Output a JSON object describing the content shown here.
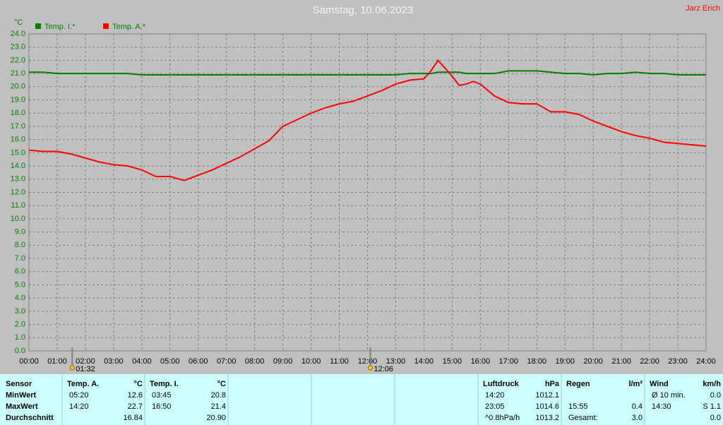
{
  "chart_data": {
    "type": "line",
    "title": "Samstag, 10.06.2023",
    "author": "Jarz Erich",
    "y_label": "°C",
    "x": [
      0,
      0.5,
      1,
      1.5,
      2,
      2.5,
      3,
      3.5,
      4,
      4.5,
      5,
      5.5,
      6,
      6.5,
      7,
      7.5,
      8,
      8.5,
      9,
      9.5,
      10,
      10.5,
      11,
      11.5,
      12,
      12.5,
      13,
      13.5,
      14,
      14.25,
      14.5,
      14.75,
      15,
      15.25,
      15.5,
      15.75,
      16,
      16.5,
      17,
      17.5,
      18,
      18.5,
      19,
      19.5,
      20,
      20.5,
      21,
      21.5,
      22,
      22.5,
      23,
      23.5,
      24
    ],
    "series": [
      {
        "name": "Temp. I.*",
        "color": "#008000",
        "values": [
          21.1,
          21.1,
          21.0,
          21.0,
          21.0,
          21.0,
          21.0,
          21.0,
          20.9,
          20.9,
          20.9,
          20.9,
          20.9,
          20.9,
          20.9,
          20.9,
          20.9,
          20.9,
          20.9,
          20.9,
          20.9,
          20.9,
          20.9,
          20.9,
          20.9,
          20.9,
          20.9,
          21.0,
          21.0,
          21.0,
          21.1,
          21.1,
          21.1,
          21.1,
          21.0,
          21.0,
          21.0,
          21.0,
          21.2,
          21.2,
          21.2,
          21.1,
          21.0,
          21.0,
          20.9,
          21.0,
          21.0,
          21.1,
          21.0,
          21.0,
          20.9,
          20.9,
          20.9
        ]
      },
      {
        "name": "Temp. A.*",
        "color": "#ff0000",
        "values": [
          15.2,
          15.1,
          15.1,
          14.9,
          14.6,
          14.3,
          14.1,
          14.0,
          13.7,
          13.2,
          13.2,
          12.9,
          13.3,
          13.7,
          14.2,
          14.7,
          15.3,
          15.9,
          17.0,
          17.5,
          18.0,
          18.4,
          18.7,
          18.9,
          19.3,
          19.7,
          20.2,
          20.5,
          20.6,
          21.2,
          22.0,
          21.4,
          20.8,
          20.1,
          20.2,
          20.4,
          20.2,
          19.3,
          18.8,
          18.7,
          18.7,
          18.1,
          18.1,
          17.9,
          17.4,
          17.0,
          16.6,
          16.3,
          16.1,
          15.8,
          15.7,
          15.6,
          15.5
        ]
      }
    ],
    "xlim": [
      0,
      24
    ],
    "xticks": [
      {
        "value": 0,
        "label": "00:00"
      },
      {
        "value": 1,
        "label": "01:00"
      },
      {
        "value": 2,
        "label": "02:00"
      },
      {
        "value": 3,
        "label": "03:00"
      },
      {
        "value": 4,
        "label": "04:00"
      },
      {
        "value": 5,
        "label": "05:00"
      },
      {
        "value": 6,
        "label": "06:00"
      },
      {
        "value": 7,
        "label": "07:00"
      },
      {
        "value": 8,
        "label": "08:00"
      },
      {
        "value": 9,
        "label": "09:00"
      },
      {
        "value": 10,
        "label": "10:00"
      },
      {
        "value": 11,
        "label": "11:00"
      },
      {
        "value": 12,
        "label": "12:00"
      },
      {
        "value": 13,
        "label": "13:00"
      },
      {
        "value": 14,
        "label": "14:00"
      },
      {
        "value": 15,
        "label": "15:00"
      },
      {
        "value": 16,
        "label": "16:00"
      },
      {
        "value": 17,
        "label": "17:00"
      },
      {
        "value": 18,
        "label": "18:00"
      },
      {
        "value": 19,
        "label": "19:00"
      },
      {
        "value": 20,
        "label": "20:00"
      },
      {
        "value": 21,
        "label": "21:00"
      },
      {
        "value": 22,
        "label": "22:00"
      },
      {
        "value": 23,
        "label": "23:00"
      },
      {
        "value": 24,
        "label": "24:00"
      }
    ],
    "ylim": [
      0,
      24
    ],
    "yticks": [
      {
        "value": 0,
        "label": "0.0"
      },
      {
        "value": 1,
        "label": "1.0"
      },
      {
        "value": 2,
        "label": "2.0"
      },
      {
        "value": 3,
        "label": "3.0"
      },
      {
        "value": 4,
        "label": "4.0"
      },
      {
        "value": 5,
        "label": "5.0"
      },
      {
        "value": 6,
        "label": "6.0"
      },
      {
        "value": 7,
        "label": "7.0"
      },
      {
        "value": 8,
        "label": "8.0"
      },
      {
        "value": 9,
        "label": "9.0"
      },
      {
        "value": 10,
        "label": "10.0"
      },
      {
        "value": 11,
        "label": "11.0"
      },
      {
        "value": 12,
        "label": "12.0"
      },
      {
        "value": 13,
        "label": "13.0"
      },
      {
        "value": 14,
        "label": "14.0"
      },
      {
        "value": 15,
        "label": "15.0"
      },
      {
        "value": 16,
        "label": "16.0"
      },
      {
        "value": 17,
        "label": "17.0"
      },
      {
        "value": 18,
        "label": "18.0"
      },
      {
        "value": 19,
        "label": "19.0"
      },
      {
        "value": 20,
        "label": "20.0"
      },
      {
        "value": 21,
        "label": "21.0"
      },
      {
        "value": 22,
        "label": "22.0"
      },
      {
        "value": 23,
        "label": "23.0"
      },
      {
        "value": 24,
        "label": "24.0"
      }
    ],
    "grid": true,
    "sun_markers": [
      {
        "value": 1.5333,
        "label": "01:32"
      },
      {
        "value": 12.1,
        "label": "12:06"
      }
    ]
  },
  "table": {
    "row_labels": [
      "Sensor",
      "MinWert",
      "MaxWert",
      "Durchschnitt"
    ],
    "columns": [
      {
        "name": "Temp. A.",
        "unit": "°C",
        "rows": [
          [
            "05:20",
            "12.6"
          ],
          [
            "14:20",
            "22.7"
          ],
          [
            null,
            "16.84"
          ]
        ]
      },
      {
        "name": "Temp. I.",
        "unit": "°C",
        "rows": [
          [
            "03:45",
            "20.8"
          ],
          [
            "16:50",
            "21.4"
          ],
          [
            null,
            "20.90"
          ]
        ]
      },
      {
        "name": "Luftdruck",
        "unit": "hPa",
        "rows": [
          [
            "14:20",
            "1012.1"
          ],
          [
            "23:05",
            "1014.6"
          ],
          [
            "^0.8hPa/h",
            "1013.2"
          ]
        ]
      },
      {
        "name": "Regen",
        "unit": "l/m²",
        "rows": [
          [
            null,
            null
          ],
          [
            "15:55",
            "0.4"
          ],
          [
            "Gesamt:",
            "3.0"
          ]
        ]
      },
      {
        "name": "Wind",
        "unit": "km/h",
        "rows": [
          [
            "Ø 10 min.",
            "0.0"
          ],
          [
            "14:30",
            "S 1.1"
          ],
          [
            null,
            "0.0"
          ]
        ]
      }
    ]
  }
}
